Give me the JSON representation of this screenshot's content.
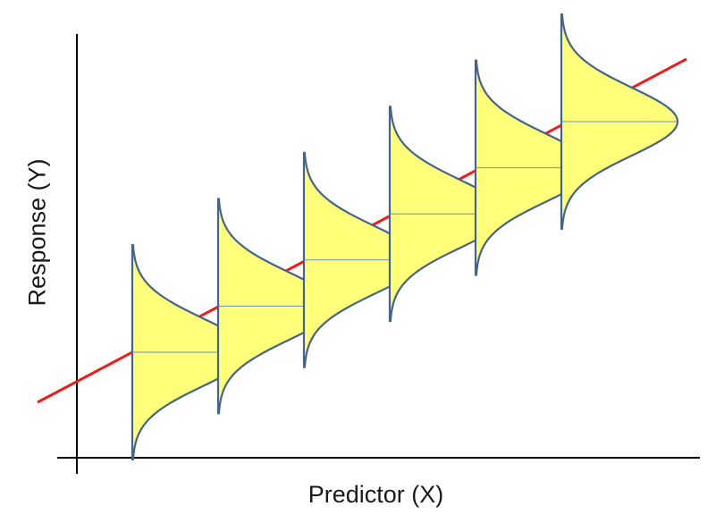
{
  "labels": {
    "x_axis": "Predictor (X)",
    "y_axis": "Response (Y)"
  },
  "colors": {
    "regression_line": "#ee1c1c",
    "distribution_fill": "#ffff7a",
    "distribution_stroke": "#44638f",
    "mean_line": "#6d8fc7"
  },
  "distributions": [
    {
      "x": 1,
      "y_mean": 1.0
    },
    {
      "x": 2,
      "y_mean": 2.0
    },
    {
      "x": 3,
      "y_mean": 3.0
    },
    {
      "x": 4,
      "y_mean": 4.0
    },
    {
      "x": 5,
      "y_mean": 5.0
    },
    {
      "x": 6,
      "y_mean": 6.0
    }
  ]
}
